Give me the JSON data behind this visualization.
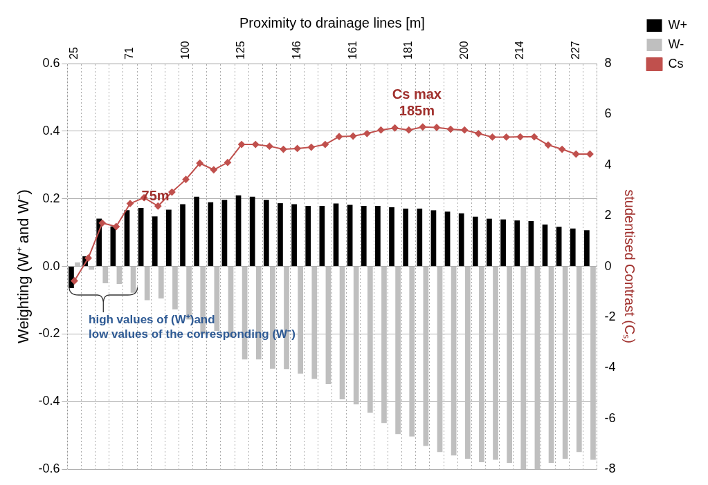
{
  "chart_data": {
    "type": "bar",
    "xlabel": "Proximity to drainage lines [m]",
    "ylabel": "Weighting (W⁺ and W⁻)",
    "y2label": "studentised Contrast (Cₛ)",
    "categories": [
      "25",
      null,
      null,
      null,
      "71",
      null,
      null,
      null,
      "100",
      null,
      null,
      null,
      "125",
      null,
      null,
      null,
      "146",
      null,
      null,
      null,
      "161",
      null,
      null,
      null,
      "181",
      null,
      null,
      null,
      "200",
      null,
      null,
      null,
      "214",
      null,
      null,
      null,
      "227",
      null
    ],
    "series": [
      {
        "name": "W+",
        "color": "#000000",
        "values": [
          -0.064,
          0.03,
          0.141,
          0.118,
          0.166,
          0.173,
          0.148,
          0.168,
          0.184,
          0.206,
          0.19,
          0.197,
          0.21,
          0.206,
          0.197,
          0.187,
          0.184,
          0.179,
          0.179,
          0.186,
          0.182,
          0.179,
          0.179,
          0.175,
          0.171,
          0.171,
          0.166,
          0.162,
          0.157,
          0.147,
          0.141,
          0.139,
          0.136,
          0.134,
          0.124,
          0.117,
          0.112,
          0.107
        ]
      },
      {
        "name": "W-",
        "color": "#bfbfbf",
        "values": [
          0.012,
          -0.01,
          -0.05,
          -0.052,
          -0.078,
          -0.1,
          -0.095,
          -0.127,
          -0.157,
          -0.2,
          -0.191,
          -0.21,
          -0.275,
          -0.275,
          -0.303,
          -0.304,
          -0.317,
          -0.333,
          -0.348,
          -0.393,
          -0.408,
          -0.433,
          -0.463,
          -0.496,
          -0.503,
          -0.531,
          -0.549,
          -0.559,
          -0.569,
          -0.579,
          -0.572,
          -0.581,
          -0.6,
          -0.6,
          -0.581,
          -0.569,
          -0.549,
          -0.572
        ]
      },
      {
        "name": "Cs",
        "type": "line",
        "axis": "y2",
        "color": "#c0504d",
        "marker": "diamond",
        "values": [
          -0.57,
          0.33,
          1.71,
          1.57,
          2.48,
          2.71,
          2.38,
          2.93,
          3.43,
          4.07,
          3.81,
          4.1,
          4.81,
          4.81,
          4.74,
          4.62,
          4.65,
          4.7,
          4.81,
          5.12,
          5.14,
          5.24,
          5.38,
          5.46,
          5.38,
          5.5,
          5.48,
          5.41,
          5.38,
          5.24,
          5.1,
          5.1,
          5.11,
          5.11,
          4.79,
          4.62,
          4.43,
          4.43
        ]
      }
    ],
    "ylim": [
      -0.6,
      0.6
    ],
    "yticks": [
      {
        "value": -0.6,
        "label": "-0.6"
      },
      {
        "value": -0.4,
        "label": "-0.4"
      },
      {
        "value": -0.2,
        "label": "-0.2"
      },
      {
        "value": 0,
        "label": "0.0"
      },
      0.2,
      0.4,
      0.6
    ],
    "y2lim": [
      -8,
      8
    ],
    "y2ticks": [
      -8,
      -6,
      -4,
      -2,
      0,
      2,
      4,
      6,
      8
    ],
    "grid": true,
    "legend": "top right",
    "annotations": [
      "75m",
      "Cs max\n185m",
      {
        "text": "high values of (W⁺)and\nlow values of the corresponding (W⁻)",
        "y": -0.06
      }
    ]
  }
}
